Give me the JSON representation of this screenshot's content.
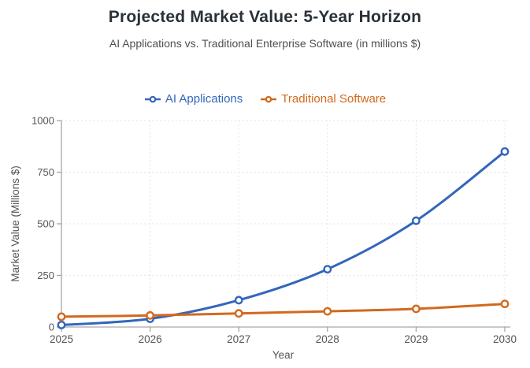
{
  "colors": {
    "title": "#2a3138",
    "subtitle": "#4f4f4f",
    "axis_line": "#a6a6a6",
    "grid_line": "#e4e4e4",
    "tick_text": "#555555",
    "ai_series": "#3366bb",
    "traditional_series": "#d2691e",
    "marker_fill": "#ffffff"
  },
  "chart_data": {
    "type": "line",
    "title": "Projected Market Value: 5-Year Horizon",
    "subtitle": "AI Applications vs. Traditional Enterprise Software (in millions $)",
    "x": [
      2025,
      2026,
      2027,
      2028,
      2029,
      2030
    ],
    "xlabel": "Year",
    "ylabel": "Market Value (Millions $)",
    "ylim": [
      0,
      1000
    ],
    "yticks": [
      0,
      250,
      500,
      750,
      1000
    ],
    "grid": true,
    "grid_style": "dashed",
    "legend_position": "top",
    "marker": "open-circle",
    "line_smoothing": true,
    "series": [
      {
        "name": "AI Applications",
        "color": "#3366bb",
        "values": [
          10,
          40,
          130,
          280,
          515,
          850
        ]
      },
      {
        "name": "Traditional Software",
        "color": "#d2691e",
        "values": [
          50,
          56,
          66,
          76,
          88,
          112
        ]
      }
    ]
  }
}
